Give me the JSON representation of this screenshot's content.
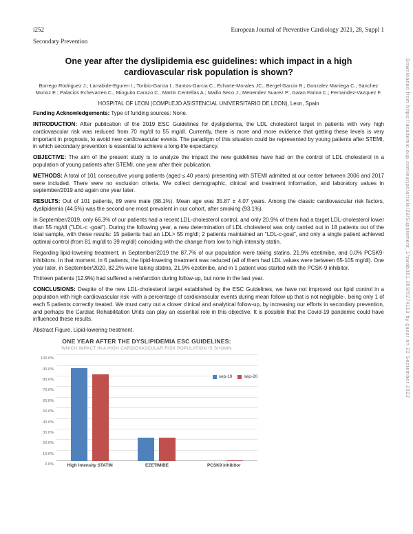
{
  "page": {
    "header_left": "i252",
    "header_right": "European Journal of Preventive Cardiology 2021, 28, Suppl 1",
    "section_heading": "Secondary Prevention",
    "watermark": "Downloaded from https://academic.oup.com/eurjpc/article/28/Supplement_1/zwab061.269/6274113 by guest on 22 September 2022"
  },
  "article": {
    "title": "One year after the dyslipidemia esc guidelines: which impact in a high cardiovascular risk population is shown?",
    "authors": "Borrego Rodriguez J.; Larrabide-Eguren I.; Toribio-Garcia I.; Santos-Garcia C.; Echarte-Morales JC.; Bergel Garcia R.; Gonzalez Maniega C.; Sanchez Munoz E.; Palacios Echevarren C.; Minguito Carazo C.; Martin Centellas A.; Maillo Seco J.; Menendez Suarez P.; Galan Farina C.; Fernandez-Vazquez F.",
    "affiliation": "HOSPITAL OF LEON (COMPLEJO ASISTENCIAL UNIVERSITARIO DE LEON), Leon, Spain",
    "sections": [
      {
        "label": "Funding Acknowledgements:",
        "text": " Type of funding sources: None."
      },
      {
        "label": "INTRODUCTION:",
        "text": " After publication of the 2019 ESC Guidelines for dyslipidemia, the LDL cholesterol target in patients with very high cardiovascular risk was reduced from 70 mg/dl to 55 mg/dl. Currently, there is more and more evidence that getting these levels is very important in prognosis, to avoid new cardiovascular events. The paradigm of this situation could be represented by young patients after STEMI, in which secondary prevention is essential to achieve a long-life expectancy."
      },
      {
        "label": "OBJECTIVE:",
        "text": " The aim of the present study is to analyze the impact the new guidelines have had on the control of LDL cholesterol in a population of young patients after STEMI, one year after their publication."
      },
      {
        "label": "METHODS:",
        "text": " A total of 101 consecutive young patients (aged ≤ 40 years) presenting with STEMI admitted at our center between 2006 and 2017 were included. There were no exclusion criteria. We collect demographic, clinical and treatment information, and laboratory values in september/2019 and again one year later."
      },
      {
        "label": "RESULTS:",
        "text": " Out of 101 patients, 89 were male (88.1%). Mean age was 35.87 ± 4.07 years. Among the classic cardiovascular risk factors, dyslipidemia (44.5%) was the second one most prevalent in our cohort, after smoking (93.1%)."
      },
      {
        "label": "",
        "text": "In September/2019, only 66.3% of our patients had a recent LDL-cholesterol control, and only 20.9% of them had a target LDL-cholesterol lower than 55 mg/dl (\"LDL-c -goal\"). During the following year, a new determination of LDL cholesterol was only carried out in 18 patients out of the total sample, with these results: 15 patients had an LDL> 55 mg/dl; 2 patients maintained an \"LDL-c-goal\", and only a single patient achieved optimal control (from 81 mg/dl to 39 mg/dl) coinciding with the change from low to high intensity statin."
      },
      {
        "label": "",
        "text": "Regarding lipid-lowering treatment, in September/2019 the 87.7% of our population were taking statins, 21.9% ezetimibe, and 0.0% PCSK9-inhibitors. In that moment, in 6 patients, the lipid-lowering treatment was reduced (all of them had LDL values were between 65-105 mg/dl). One year later, in September/2020, 82.2% were taking statins, 21.9% ezetimibe, and in 1 patient was started with the PCSK-9 inhibitor."
      },
      {
        "label": "",
        "text": "Thirteen patients (12.9%) had suffered a reinfarction during follow-up, but none in the last year."
      },
      {
        "label": "CONCLUSIONS:",
        "text": " Despite of the new LDL-cholesterol target established by the ESC Guidelines, we have not improved our lipid control in a population with high cardiovascular risk -with a percentage of cardiovascular events during mean follow-up that is not negligible-, being only 1 of each 5 patients correctly treated. We must carry out a closer clinical and analytical follow-up, by increasing our efforts in secondary prevention, and perhaps the Cardiac Rehabilitation Units can play an essential role in this objective. It is possible that the Covid-19 pandemic could have influenced these results."
      }
    ],
    "figure_caption": "Abstract Figure. Lipid-lowering treatment."
  },
  "chart_data": {
    "type": "bar",
    "title": "ONE YEAR AFTER THE DYSLIPIDEMIA ESC GUIDELINES:",
    "subtitle": "WHICH IMPACT IN A HIGH CARDIOVASCULAR RISK POPULATION IS SHOWN",
    "categories": [
      "High Intensity STATIN",
      "EZETIMIBE",
      "PCSK9 inhibitor"
    ],
    "series": [
      {
        "name": "sep-19",
        "color": "#4f81bd",
        "values": [
          87.7,
          21.9,
          0.0
        ]
      },
      {
        "name": "sep-20",
        "color": "#c0504d",
        "values": [
          82.2,
          21.9,
          1.0
        ]
      }
    ],
    "xlabel": "",
    "ylabel": "",
    "ylim": [
      0,
      100
    ],
    "ytick_step": 10,
    "ytick_suffix": "%",
    "grid": true,
    "legend_position": "upper-right-inside"
  }
}
